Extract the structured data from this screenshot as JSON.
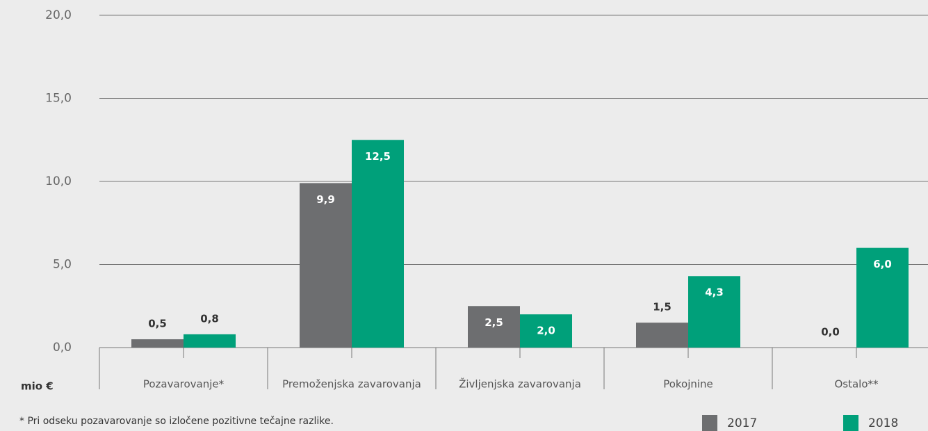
{
  "chart_data": {
    "type": "bar",
    "categories": [
      "Pozavarovanje*",
      "Premoženjska zavarovanja",
      "Življenjska zavarovanja",
      "Pokojnine",
      "Ostalo**"
    ],
    "series": [
      {
        "name": "2017",
        "color": "#6d6e70",
        "values": [
          0.5,
          9.9,
          2.5,
          1.5,
          0.0
        ],
        "value_labels": [
          "0,5",
          "9,9",
          "2,5",
          "1,5",
          "0,0"
        ]
      },
      {
        "name": "2018",
        "color": "#00a07a",
        "values": [
          0.8,
          12.5,
          2.0,
          4.3,
          6.0
        ],
        "value_labels": [
          "0,8",
          "12,5",
          "2,0",
          "4,3",
          "6,0"
        ]
      }
    ],
    "ylim": [
      0,
      20
    ],
    "yticks": [
      {
        "value": 0,
        "label": "0,0"
      },
      {
        "value": 5,
        "label": "5,0"
      },
      {
        "value": 10,
        "label": "10,0"
      },
      {
        "value": 15,
        "label": "15,0"
      },
      {
        "value": 20,
        "label": "20,0"
      }
    ],
    "grid": true,
    "unit_label": "mio €",
    "footnote": "*   Pri odseku pozavarovanje so izločene pozitivne tečajne razlike."
  }
}
